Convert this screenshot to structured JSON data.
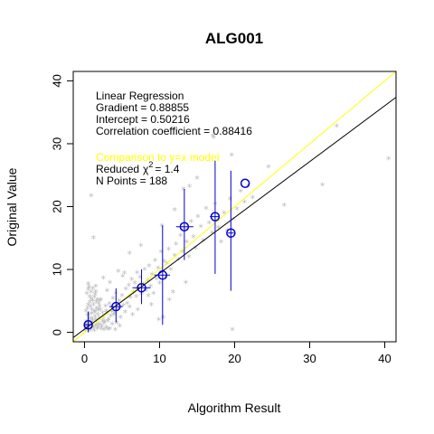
{
  "chart_data": {
    "type": "scatter",
    "title": "ALG001",
    "xlabel": "Algorithm Result",
    "ylabel": "Original Value",
    "xlim": [
      -1.5,
      41.5
    ],
    "ylim": [
      -1.5,
      41.5
    ],
    "xticks": [
      0,
      10,
      20,
      30,
      40
    ],
    "yticks": [
      0,
      10,
      20,
      30,
      40
    ],
    "regression": {
      "heading": "Linear Regression",
      "gradient_label": "Gradient = 0.88855",
      "intercept_label": "Intercept = 0.50216",
      "correlation_label": "Correlation coefficient = 0.88416",
      "gradient": 0.88855,
      "intercept": 0.50216,
      "color": "#000000"
    },
    "comparison": {
      "heading": "Comparison to y=x model",
      "reduced_prefix": "Reduced",
      "chi_symbol": "χ",
      "chi_sup": "2",
      "reduced_value": "=   1.4",
      "npoints_label": "N Points =  188",
      "color": "#ffff00"
    },
    "raw_points_color": "#bbbbbb",
    "binned_color": "#0000cc",
    "raw_points": [
      [
        0.2,
        0.5
      ],
      [
        0.3,
        1.5
      ],
      [
        0.5,
        0.2
      ],
      [
        0.4,
        2.5
      ],
      [
        0.6,
        1.0
      ],
      [
        0.8,
        0.3
      ],
      [
        0.9,
        2.0
      ],
      [
        1.0,
        1.2
      ],
      [
        1.2,
        0.6
      ],
      [
        1.3,
        3.0
      ],
      [
        1.5,
        1.8
      ],
      [
        1.7,
        0.4
      ],
      [
        1.8,
        2.6
      ],
      [
        2.0,
        1.1
      ],
      [
        2.1,
        3.4
      ],
      [
        2.3,
        0.8
      ],
      [
        2.5,
        2.2
      ],
      [
        2.7,
        1.5
      ],
      [
        2.8,
        4.0
      ],
      [
        3.0,
        2.8
      ],
      [
        0.5,
        4.2
      ],
      [
        0.7,
        5.5
      ],
      [
        0.6,
        7.0
      ],
      [
        0.5,
        7.5
      ],
      [
        0.9,
        6.2
      ],
      [
        1.1,
        4.8
      ],
      [
        1.4,
        5.8
      ],
      [
        1.6,
        3.6
      ],
      [
        1.9,
        4.4
      ],
      [
        2.2,
        5.0
      ],
      [
        0.3,
        0.9
      ],
      [
        0.7,
        0.1
      ],
      [
        1.0,
        2.8
      ],
      [
        1.5,
        0.9
      ],
      [
        2.0,
        3.9
      ],
      [
        2.4,
        1.6
      ],
      [
        2.6,
        0.2
      ],
      [
        2.9,
        3.2
      ],
      [
        3.2,
        1.9
      ],
      [
        3.5,
        2.4
      ],
      [
        3.3,
        4.3
      ],
      [
        3.6,
        3.1
      ],
      [
        3.8,
        5.2
      ],
      [
        4.0,
        2.9
      ],
      [
        4.2,
        6.0
      ],
      [
        4.4,
        3.5
      ],
      [
        4.6,
        4.8
      ],
      [
        4.8,
        2.2
      ],
      [
        5.0,
        5.6
      ],
      [
        5.2,
        4.1
      ],
      [
        3.1,
        0.3
      ],
      [
        4.1,
        0.2
      ],
      [
        4.3,
        1.3
      ],
      [
        5.4,
        3.0
      ],
      [
        5.5,
        6.7
      ],
      [
        5.7,
        4.4
      ],
      [
        5.9,
        7.3
      ],
      [
        6.1,
        5.3
      ],
      [
        6.3,
        8.2
      ],
      [
        6.5,
        6.1
      ],
      [
        6.0,
        3.8
      ],
      [
        6.7,
        7.6
      ],
      [
        6.9,
        5.5
      ],
      [
        7.0,
        9.3
      ],
      [
        7.2,
        6.8
      ],
      [
        7.4,
        8.6
      ],
      [
        7.6,
        5.9
      ],
      [
        7.8,
        7.4
      ],
      [
        8.0,
        9.8
      ],
      [
        8.2,
        6.5
      ],
      [
        5.3,
        9.2
      ],
      [
        8.4,
        8.0
      ],
      [
        8.6,
        10.4
      ],
      [
        8.8,
        7.1
      ],
      [
        9.0,
        9.0
      ],
      [
        9.2,
        6.0
      ],
      [
        9.4,
        11.2
      ],
      [
        9.6,
        8.3
      ],
      [
        9.8,
        10.0
      ],
      [
        10.0,
        7.6
      ],
      [
        8.5,
        5.6
      ],
      [
        10.2,
        12.6
      ],
      [
        10.4,
        9.5
      ],
      [
        10.6,
        11.1
      ],
      [
        10.8,
        8.4
      ],
      [
        11.0,
        10.7
      ],
      [
        11.2,
        13.0
      ],
      [
        11.5,
        9.8
      ],
      [
        11.8,
        6.2
      ],
      [
        12.0,
        12.0
      ],
      [
        9.9,
        1.8
      ],
      [
        10.5,
        2.2
      ],
      [
        12.2,
        13.8
      ],
      [
        12.5,
        11.4
      ],
      [
        12.8,
        15.2
      ],
      [
        13.0,
        12.6
      ],
      [
        13.3,
        16.3
      ],
      [
        13.6,
        14.2
      ],
      [
        13.9,
        11.8
      ],
      [
        14.2,
        17.4
      ],
      [
        14.5,
        15.0
      ],
      [
        14.8,
        13.2
      ],
      [
        15.1,
        18.2
      ],
      [
        15.5,
        16.6
      ],
      [
        15.8,
        14.4
      ],
      [
        16.2,
        19.5
      ],
      [
        16.6,
        17.2
      ],
      [
        17.0,
        15.6
      ],
      [
        17.4,
        20.2
      ],
      [
        17.8,
        16.5
      ],
      [
        18.2,
        14.2
      ],
      [
        18.6,
        18.8
      ],
      [
        19.0,
        16.0
      ],
      [
        19.4,
        21.0
      ],
      [
        19.8,
        17.8
      ],
      [
        20.3,
        19.4
      ],
      [
        20.8,
        22.2
      ],
      [
        21.3,
        20.5
      ],
      [
        21.8,
        23.1
      ],
      [
        22.4,
        21.2
      ],
      [
        17.1,
        31.1
      ],
      [
        19.6,
        28.0
      ],
      [
        24.5,
        26.1
      ],
      [
        26.6,
        20.0
      ],
      [
        31.7,
        23.2
      ],
      [
        33.6,
        32.6
      ],
      [
        40.5,
        27.4
      ],
      [
        0.9,
        21.5
      ],
      [
        1.2,
        14.8
      ],
      [
        19.7,
        0.2
      ],
      [
        17.2,
        30.8
      ],
      [
        14.0,
        23.0
      ],
      [
        15.0,
        24.3
      ],
      [
        13.2,
        22.6
      ],
      [
        10.3,
        16.8
      ],
      [
        12.0,
        19.3
      ],
      [
        6.0,
        12.4
      ],
      [
        7.5,
        13.6
      ],
      [
        1.5,
        7.1
      ],
      [
        2.5,
        8.4
      ],
      [
        3.0,
        6.4
      ],
      [
        3.4,
        7.7
      ],
      [
        4.5,
        9.5
      ],
      [
        5.1,
        8.7
      ],
      [
        4.7,
        0.8
      ],
      [
        6.4,
        2.6
      ],
      [
        7.1,
        3.4
      ],
      [
        8.9,
        4.2
      ],
      [
        11.3,
        5.0
      ],
      [
        13.5,
        7.7
      ],
      [
        0.1,
        0.1
      ],
      [
        0.2,
        1.1
      ],
      [
        0.4,
        0.7
      ],
      [
        0.6,
        1.9
      ],
      [
        0.8,
        1.4
      ],
      [
        1.0,
        0.5
      ],
      [
        1.1,
        1.7
      ],
      [
        1.3,
        0.1
      ],
      [
        1.4,
        2.3
      ],
      [
        1.6,
        1.3
      ],
      [
        1.8,
        0.7
      ],
      [
        2.0,
        2.0
      ],
      [
        2.2,
        0.4
      ],
      [
        2.4,
        2.9
      ],
      [
        2.6,
        1.2
      ],
      [
        2.9,
        0.6
      ],
      [
        3.1,
        1.6
      ],
      [
        3.4,
        0.4
      ],
      [
        3.7,
        1.1
      ],
      [
        3.9,
        2.6
      ],
      [
        0.2,
        3.2
      ],
      [
        0.4,
        3.6
      ],
      [
        0.6,
        2.7
      ],
      [
        0.8,
        3.9
      ],
      [
        1.0,
        3.4
      ],
      [
        1.2,
        4.2
      ],
      [
        1.4,
        3.1
      ],
      [
        1.6,
        4.6
      ],
      [
        1.8,
        3.3
      ],
      [
        2.0,
        4.9
      ],
      [
        0.3,
        6.0
      ],
      [
        0.5,
        6.6
      ],
      [
        0.7,
        4.6
      ],
      [
        0.9,
        5.1
      ],
      [
        1.1,
        6.8
      ],
      [
        1.3,
        5.4
      ],
      [
        1.5,
        6.3
      ],
      [
        1.7,
        5.0
      ]
    ],
    "binned_points": [
      {
        "x": 0.5,
        "y": 1.2,
        "ylo": 0.0,
        "yhi": 3.3,
        "xlo": 0.0,
        "xhi": 1.0
      },
      {
        "x": 4.2,
        "y": 4.1,
        "ylo": 1.6,
        "yhi": 7.0,
        "xlo": 3.3,
        "xhi": 5.1
      },
      {
        "x": 7.6,
        "y": 7.1,
        "ylo": 4.5,
        "yhi": 10.0,
        "xlo": 6.4,
        "xhi": 8.8
      },
      {
        "x": 10.4,
        "y": 9.1,
        "ylo": 1.2,
        "yhi": 17.0,
        "xlo": 9.3,
        "xhi": 11.4
      },
      {
        "x": 13.3,
        "y": 16.8,
        "ylo": 11.5,
        "yhi": 22.8,
        "xlo": 12.2,
        "xhi": 14.5
      },
      {
        "x": 17.4,
        "y": 18.4,
        "ylo": 9.3,
        "yhi": 27.3,
        "xlo": 16.7,
        "xhi": 18.0
      },
      {
        "x": 19.5,
        "y": 15.8,
        "ylo": 6.6,
        "yhi": 25.7,
        "xlo": 19.1,
        "xhi": 19.9
      },
      {
        "x": 21.4,
        "y": 23.7,
        "ylo": 23.7,
        "yhi": 23.7,
        "xlo": 21.4,
        "xhi": 21.4
      }
    ]
  }
}
